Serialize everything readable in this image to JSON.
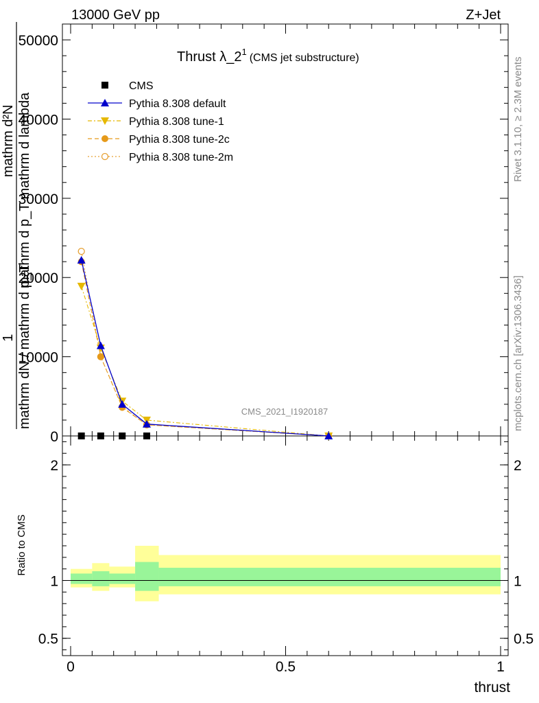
{
  "header": {
    "energy_label": "13000 GeV pp",
    "process_label": "Z+Jet"
  },
  "side_labels": {
    "rivet": "Rivet 3.1.10, ≥ 2.3M events",
    "mcplots": "mcplots.cern.ch [arXiv:1306.3436]"
  },
  "watermark": "CMS_2021_I1920187",
  "colors": {
    "data": "#000000",
    "default": "#0000cc",
    "tune1": "#e6b800",
    "tune2c": "#e69a1a",
    "tune2m": "#e6a033",
    "band_inner": "#99f599",
    "band_outer": "#ffff99"
  },
  "chart_data": [
    {
      "type": "line",
      "title_main": "Thrust λ_2",
      "title_sup": "1",
      "title_sub": "(CMS jet substructure)",
      "ylabel_num": "mathrm d²N",
      "ylabel_num_tail": "mathrm d p_T mathrm d lambda",
      "ylabel_den": "mathrm dN / mathrm d p_T",
      "ylabel_prefix": "1",
      "xlim": [
        0,
        1
      ],
      "ylim": [
        0,
        52000
      ],
      "yticks": [
        0,
        10000,
        20000,
        30000,
        40000,
        50000
      ],
      "ytick_labels": [
        "0",
        "10000",
        "20000",
        "30000",
        "40000",
        "50000"
      ],
      "legend_position": "top-left",
      "series": [
        {
          "name": "CMS",
          "style": "data",
          "x": [
            0.025,
            0.07,
            0.12,
            0.177
          ],
          "y": [
            0,
            0,
            0,
            0
          ]
        },
        {
          "name": "Pythia 8.308 default",
          "style": "default",
          "x": [
            0.025,
            0.07,
            0.12,
            0.177,
            0.6
          ],
          "y": [
            22200,
            11400,
            4000,
            1500,
            0
          ]
        },
        {
          "name": "Pythia 8.308 tune-1",
          "style": "tune1",
          "x": [
            0.025,
            0.07,
            0.12,
            0.177,
            0.6
          ],
          "y": [
            18900,
            11100,
            4400,
            2000,
            0
          ]
        },
        {
          "name": "Pythia 8.308 tune-2c",
          "style": "tune2c",
          "x": [
            0.025,
            0.07,
            0.12,
            0.177,
            0.6
          ],
          "y": [
            22000,
            10000,
            3600,
            1400,
            0
          ]
        },
        {
          "name": "Pythia 8.308 tune-2m",
          "style": "tune2m",
          "x": [
            0.025,
            0.07,
            0.12,
            0.177,
            0.6
          ],
          "y": [
            23300,
            10000,
            3700,
            1400,
            0
          ]
        }
      ]
    },
    {
      "type": "area",
      "ylabel": "Ratio to CMS",
      "xlabel": "thrust",
      "xlim": [
        0,
        1
      ],
      "ylim": [
        0.35,
        2.25
      ],
      "yticks": [
        0.5,
        1,
        2
      ],
      "ytick_labels": [
        "0.5",
        "1",
        "2"
      ],
      "xticks": [
        0,
        0.5,
        1
      ],
      "xtick_labels": [
        "0",
        "0.5",
        "1"
      ],
      "reference_line": 1,
      "bands": [
        {
          "x_lo": 0.0,
          "x_hi": 0.05,
          "inner": [
            0.97,
            1.06
          ],
          "outer": [
            0.94,
            1.1
          ]
        },
        {
          "x_lo": 0.05,
          "x_hi": 0.09,
          "inner": [
            0.95,
            1.08
          ],
          "outer": [
            0.91,
            1.15
          ]
        },
        {
          "x_lo": 0.09,
          "x_hi": 0.15,
          "inner": [
            0.97,
            1.06
          ],
          "outer": [
            0.94,
            1.12
          ]
        },
        {
          "x_lo": 0.15,
          "x_hi": 0.205,
          "inner": [
            0.91,
            1.16
          ],
          "outer": [
            0.82,
            1.3
          ]
        },
        {
          "x_lo": 0.205,
          "x_hi": 1.0,
          "inner": [
            0.95,
            1.11
          ],
          "outer": [
            0.88,
            1.22
          ]
        }
      ]
    }
  ]
}
